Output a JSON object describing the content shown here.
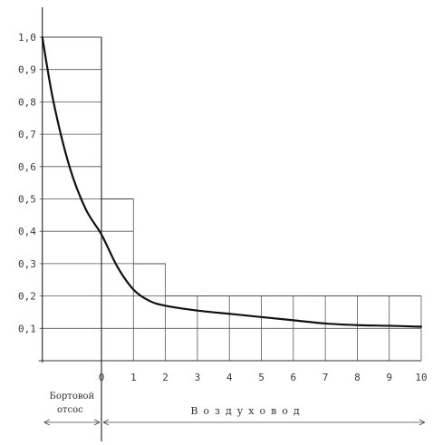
{
  "chart_data": {
    "type": "line",
    "y_ticks": [
      "1,0",
      "0,9",
      "0,8",
      "0,7",
      "0,6",
      "0,5",
      "0,4",
      "0,3",
      "0,2",
      "0,1"
    ],
    "y_tick_values": [
      1.0,
      0.9,
      0.8,
      0.7,
      0.6,
      0.5,
      0.4,
      0.3,
      0.2,
      0.1
    ],
    "x_ticks": [
      "0",
      "1",
      "2",
      "3",
      "4",
      "5",
      "6",
      "7",
      "8",
      "9",
      "10"
    ],
    "x_tick_values": [
      0,
      1,
      2,
      3,
      4,
      5,
      6,
      7,
      8,
      9,
      10
    ],
    "xlim": [
      -1.85,
      10
    ],
    "ylim": [
      0,
      1.0
    ],
    "regions": [
      {
        "label_lines": [
          "Бортовой",
          "отсос"
        ],
        "x_range": [
          -1.85,
          0
        ]
      },
      {
        "label": "Воздуховод",
        "x_range": [
          0,
          10
        ]
      }
    ],
    "step_outline": [
      {
        "x_range": [
          -1.85,
          0
        ],
        "y": 1.0
      },
      {
        "x_range": [
          0,
          1
        ],
        "y": 0.5
      },
      {
        "x_range": [
          1,
          2
        ],
        "y": 0.3
      },
      {
        "x_range": [
          2,
          10
        ],
        "y": 0.2
      }
    ],
    "series": [
      {
        "points": [
          [
            -1.85,
            1.0
          ],
          [
            -1.5,
            0.8
          ],
          [
            -1.0,
            0.6
          ],
          [
            -0.5,
            0.47
          ],
          [
            0,
            0.39
          ],
          [
            0.5,
            0.29
          ],
          [
            1.0,
            0.22
          ],
          [
            1.5,
            0.185
          ],
          [
            2.0,
            0.17
          ],
          [
            3.0,
            0.155
          ],
          [
            4.0,
            0.145
          ],
          [
            5.0,
            0.135
          ],
          [
            6.0,
            0.125
          ],
          [
            7.0,
            0.115
          ],
          [
            8.0,
            0.11
          ],
          [
            9.0,
            0.108
          ],
          [
            10.0,
            0.105
          ]
        ]
      }
    ],
    "grid": true,
    "legend": "none"
  }
}
